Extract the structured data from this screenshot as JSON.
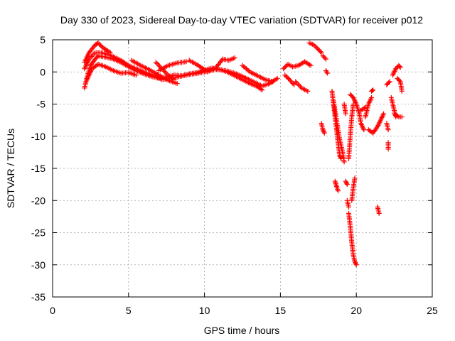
{
  "chart_data": {
    "type": "scatter",
    "title": "Day 330 of 2023, Sidereal Day-to-day VTEC variation (SDTVAR) for receiver p012",
    "xlabel": "GPS time / hours",
    "ylabel": "SDTVAR / TECUs",
    "xlim": [
      0,
      25
    ],
    "ylim": [
      -35,
      5
    ],
    "xticks": [
      0,
      5,
      10,
      15,
      20,
      25
    ],
    "yticks": [
      -35,
      -30,
      -25,
      -20,
      -15,
      -10,
      -5,
      0,
      5
    ],
    "grid": true,
    "marker": "+",
    "color": "#ff0000",
    "series": [
      {
        "segments": [
          [
            [
              2.1,
              -2.5
            ],
            [
              2.3,
              -0.5
            ],
            [
              2.5,
              1.0
            ],
            [
              2.8,
              2.0
            ],
            [
              3.0,
              2.5
            ],
            [
              3.5,
              2.3
            ],
            [
              4.0,
              2.0
            ],
            [
              4.5,
              1.5
            ],
            [
              5.0,
              0.8
            ],
            [
              5.5,
              0.2
            ],
            [
              6.0,
              -0.3
            ],
            [
              6.5,
              -0.7
            ],
            [
              7.0,
              -1.0
            ],
            [
              7.5,
              -0.8
            ],
            [
              8.0,
              -0.5
            ],
            [
              8.5,
              -0.6
            ],
            [
              9.0,
              -0.3
            ],
            [
              9.5,
              -0.1
            ],
            [
              10.0,
              0.3
            ],
            [
              10.5,
              0.6
            ],
            [
              11.0,
              0.4
            ],
            [
              11.5,
              0.0
            ],
            [
              12.0,
              -0.6
            ],
            [
              12.5,
              -1.2
            ],
            [
              13.0,
              -1.8
            ],
            [
              13.5,
              -2.3
            ],
            [
              13.8,
              -2.8
            ]
          ],
          [
            [
              2.1,
              0.5
            ],
            [
              2.4,
              2.0
            ],
            [
              2.8,
              3.0
            ],
            [
              3.2,
              3.0
            ],
            [
              3.8,
              2.6
            ],
            [
              4.5,
              1.8
            ],
            [
              5.0,
              1.0
            ],
            [
              5.6,
              0.4
            ],
            [
              6.2,
              -0.2
            ],
            [
              6.8,
              -0.6
            ],
            [
              7.2,
              -1.2
            ],
            [
              7.8,
              -1.0
            ],
            [
              8.4,
              -0.7
            ],
            [
              9.0,
              -0.4
            ],
            [
              9.6,
              -0.2
            ],
            [
              10.2,
              0.1
            ],
            [
              10.8,
              0.4
            ],
            [
              11.4,
              0.2
            ],
            [
              12.0,
              -0.2
            ],
            [
              12.6,
              -0.8
            ],
            [
              13.2,
              -1.5
            ],
            [
              13.8,
              -2.2
            ],
            [
              14.3,
              -1.8
            ],
            [
              14.8,
              -1.0
            ]
          ],
          [
            [
              2.1,
              1.5
            ],
            [
              2.4,
              3.0
            ],
            [
              2.8,
              4.2
            ],
            [
              3.0,
              4.5
            ],
            [
              3.3,
              3.8
            ],
            [
              3.8,
              3.0
            ]
          ],
          [
            [
              2.2,
              -1.5
            ],
            [
              2.6,
              0.5
            ],
            [
              3.0,
              1.2
            ],
            [
              3.5,
              0.8
            ],
            [
              4.0,
              0.2
            ],
            [
              4.5,
              -0.2
            ],
            [
              5.0,
              -0.1
            ],
            [
              5.5,
              -0.5
            ]
          ],
          [
            [
              5.2,
              1.8
            ],
            [
              5.8,
              1.0
            ],
            [
              6.4,
              0.3
            ],
            [
              7.0,
              -0.5
            ],
            [
              7.6,
              -1.3
            ],
            [
              8.2,
              -1.8
            ]
          ],
          [
            [
              6.8,
              1.5
            ],
            [
              7.2,
              0.5
            ],
            [
              7.6,
              -0.5
            ],
            [
              8.0,
              -1.2
            ]
          ],
          [
            [
              7.0,
              0.2
            ],
            [
              7.6,
              1.0
            ],
            [
              8.2,
              1.4
            ],
            [
              8.8,
              1.6
            ]
          ],
          [
            [
              9.0,
              1.8
            ],
            [
              9.6,
              1.0
            ],
            [
              10.2,
              0.0
            ],
            [
              10.8,
              0.8
            ],
            [
              11.2,
              2.0
            ],
            [
              11.6,
              1.8
            ],
            [
              12.0,
              2.2
            ]
          ],
          [
            [
              12.5,
              1.0
            ],
            [
              13.0,
              0.0
            ],
            [
              13.5,
              -0.6
            ],
            [
              14.0,
              -1.2
            ],
            [
              14.5,
              -1.5
            ]
          ],
          [
            [
              15.2,
              0.5
            ],
            [
              15.5,
              1.2
            ],
            [
              15.8,
              0.8
            ],
            [
              16.2,
              1.0
            ],
            [
              16.6,
              1.6
            ],
            [
              17.0,
              1.0
            ]
          ],
          [
            [
              15.3,
              -0.5
            ],
            [
              15.6,
              -1.2
            ],
            [
              15.9,
              -2.0
            ]
          ],
          [
            [
              16.0,
              -1.5
            ],
            [
              16.4,
              -2.5
            ],
            [
              16.8,
              -3.0
            ]
          ],
          [
            [
              16.9,
              4.5
            ],
            [
              17.2,
              4.2
            ],
            [
              17.5,
              3.5
            ],
            [
              17.7,
              3.0
            ]
          ],
          [
            [
              17.8,
              2.5
            ],
            [
              18.0,
              2.0
            ]
          ],
          [
            [
              18.0,
              0.2
            ],
            [
              18.1,
              -0.2
            ]
          ],
          [
            [
              17.7,
              -8.0
            ],
            [
              17.8,
              -9.0
            ],
            [
              17.9,
              -9.5
            ]
          ],
          [
            [
              18.4,
              -3.0
            ],
            [
              18.5,
              -5.0
            ],
            [
              18.6,
              -7.0
            ],
            [
              18.7,
              -9.0
            ],
            [
              18.8,
              -11.0
            ],
            [
              18.9,
              -13.0
            ],
            [
              19.0,
              -13.5
            ]
          ],
          [
            [
              18.5,
              -4.5
            ],
            [
              18.7,
              -7.5
            ],
            [
              18.9,
              -10.5
            ],
            [
              19.1,
              -12.5
            ],
            [
              19.2,
              -14.0
            ]
          ],
          [
            [
              18.6,
              -17.0
            ],
            [
              18.7,
              -17.8
            ],
            [
              18.8,
              -18.5
            ]
          ],
          [
            [
              19.2,
              -5.0
            ],
            [
              19.3,
              -6.5
            ]
          ],
          [
            [
              19.3,
              -17.0
            ],
            [
              19.4,
              -17.5
            ]
          ],
          [
            [
              19.4,
              -20.0
            ],
            [
              19.5,
              -21.0
            ]
          ],
          [
            [
              19.5,
              -13.5
            ],
            [
              19.6,
              -10.0
            ],
            [
              19.7,
              -7.0
            ],
            [
              19.8,
              -5.0
            ]
          ],
          [
            [
              19.5,
              -22.0
            ],
            [
              19.6,
              -24.0
            ],
            [
              19.7,
              -26.5
            ],
            [
              19.8,
              -28.5
            ],
            [
              19.9,
              -29.5
            ],
            [
              20.0,
              -30.0
            ]
          ],
          [
            [
              19.7,
              -20.0
            ],
            [
              19.8,
              -18.0
            ],
            [
              19.9,
              -16.5
            ]
          ],
          [
            [
              19.6,
              -3.5
            ],
            [
              19.8,
              -4.0
            ],
            [
              20.0,
              -5.0
            ],
            [
              20.2,
              -6.5
            ],
            [
              20.3,
              -8.0
            ],
            [
              20.5,
              -9.0
            ]
          ],
          [
            [
              20.3,
              -6.0
            ],
            [
              20.6,
              -5.5
            ]
          ],
          [
            [
              20.6,
              -7.0
            ],
            [
              20.8,
              -5.0
            ],
            [
              21.0,
              -4.0
            ]
          ],
          [
            [
              20.8,
              -9.0
            ],
            [
              21.1,
              -9.5
            ],
            [
              21.4,
              -8.5
            ],
            [
              21.6,
              -7.5
            ],
            [
              21.8,
              -6.5
            ]
          ],
          [
            [
              21.0,
              -3.0
            ],
            [
              21.1,
              -2.8
            ]
          ],
          [
            [
              21.4,
              -21.0
            ],
            [
              21.5,
              -22.0
            ]
          ],
          [
            [
              22.0,
              -8.0
            ],
            [
              22.1,
              -9.0
            ]
          ],
          [
            [
              22.1,
              -11.0
            ],
            [
              22.1,
              -12.0
            ]
          ],
          [
            [
              22.0,
              -2.0
            ],
            [
              22.2,
              -1.5
            ]
          ],
          [
            [
              22.3,
              -4.0
            ],
            [
              22.5,
              -6.0
            ],
            [
              22.6,
              -7.0
            ]
          ],
          [
            [
              22.4,
              -0.5
            ],
            [
              22.6,
              0.5
            ],
            [
              22.8,
              1.0
            ],
            [
              22.9,
              0.7
            ]
          ],
          [
            [
              22.5,
              -6.5
            ],
            [
              22.8,
              -7.0
            ],
            [
              23.0,
              -7.0
            ]
          ],
          [
            [
              22.7,
              -1.0
            ],
            [
              22.9,
              -1.5
            ],
            [
              23.0,
              -3.0
            ]
          ]
        ]
      }
    ]
  }
}
